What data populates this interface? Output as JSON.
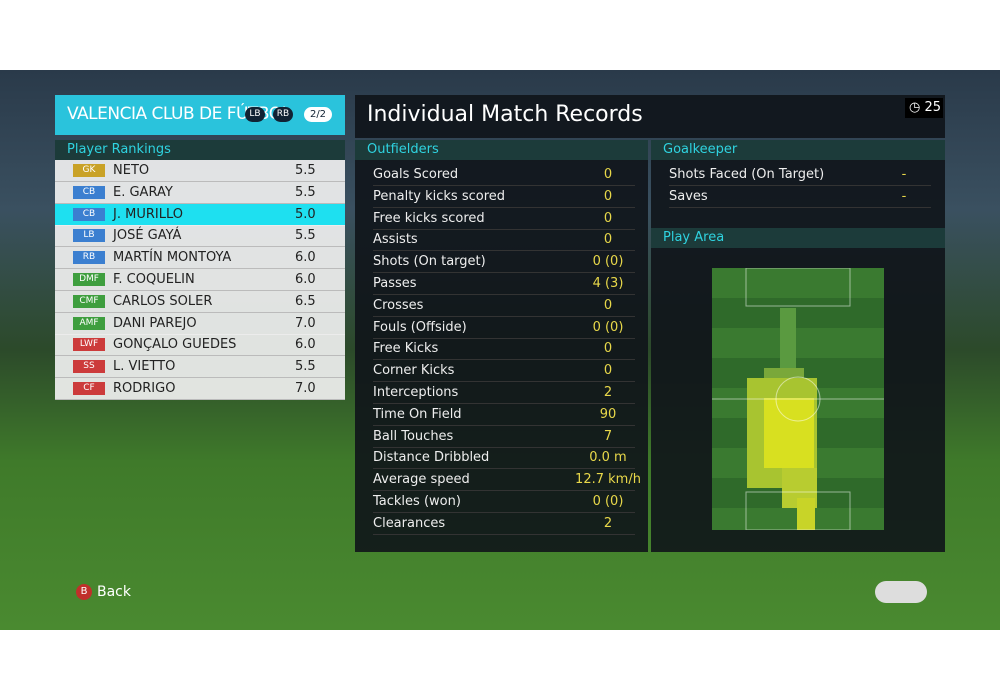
{
  "header": {
    "club": "VALENCIA CLUB DE FÚTBOL",
    "badge_left": "LB",
    "badge_right": "RB",
    "page": "2/2",
    "title": "Individual Match Records",
    "timer": "25"
  },
  "rankings": {
    "heading": "Player Rankings",
    "rows": [
      {
        "pos": "GK",
        "name": "NETO",
        "rating": "5.5",
        "color": "#c9a227"
      },
      {
        "pos": "CB",
        "name": "E. GARAY",
        "rating": "5.5",
        "color": "#3b7fd0"
      },
      {
        "pos": "CB",
        "name": "J. MURILLO",
        "rating": "5.0",
        "color": "#3b7fd0",
        "selected": true
      },
      {
        "pos": "LB",
        "name": "JOSÉ GAYÁ",
        "rating": "5.5",
        "color": "#3b7fd0"
      },
      {
        "pos": "RB",
        "name": "MARTÍN MONTOYA",
        "rating": "6.0",
        "color": "#3b7fd0"
      },
      {
        "pos": "DMF",
        "name": "F. COQUELIN",
        "rating": "6.0",
        "color": "#3e9e3e"
      },
      {
        "pos": "CMF",
        "name": "CARLOS SOLER",
        "rating": "6.5",
        "color": "#3e9e3e"
      },
      {
        "pos": "AMF",
        "name": "DANI PAREJO",
        "rating": "7.0",
        "color": "#3e9e3e"
      },
      {
        "pos": "LWF",
        "name": "GONÇALO GUEDES",
        "rating": "6.0",
        "color": "#cc3b3b"
      },
      {
        "pos": "SS",
        "name": "L. VIETTO",
        "rating": "5.5",
        "color": "#cc3b3b"
      },
      {
        "pos": "CF",
        "name": "RODRIGO",
        "rating": "7.0",
        "color": "#cc3b3b"
      }
    ]
  },
  "outfielders": {
    "heading": "Outfielders",
    "rows": [
      [
        "Goals Scored",
        "0"
      ],
      [
        "Penalty kicks scored",
        "0"
      ],
      [
        "Free kicks scored",
        "0"
      ],
      [
        "Assists",
        "0"
      ],
      [
        "Shots (On target)",
        "0 (0)"
      ],
      [
        "Passes",
        "4 (3)"
      ],
      [
        "Crosses",
        "0"
      ],
      [
        "Fouls (Offside)",
        "0 (0)"
      ],
      [
        "Free Kicks",
        "0"
      ],
      [
        "Corner Kicks",
        "0"
      ],
      [
        "Interceptions",
        "2"
      ],
      [
        "Time On Field",
        "90"
      ],
      [
        "Ball Touches",
        "7"
      ],
      [
        "Distance Dribbled",
        "0.0 m"
      ],
      [
        "Average speed",
        "12.7 km/h"
      ],
      [
        "Tackles (won)",
        "0 (0)"
      ],
      [
        "Clearances",
        "2"
      ]
    ]
  },
  "goalkeeper": {
    "heading": "Goalkeeper",
    "rows": [
      [
        "Shots Faced (On Target)",
        "-"
      ],
      [
        "Saves",
        "-"
      ]
    ]
  },
  "play_area": {
    "heading": "Play Area"
  },
  "footer": {
    "button": "B",
    "back": "Back"
  }
}
